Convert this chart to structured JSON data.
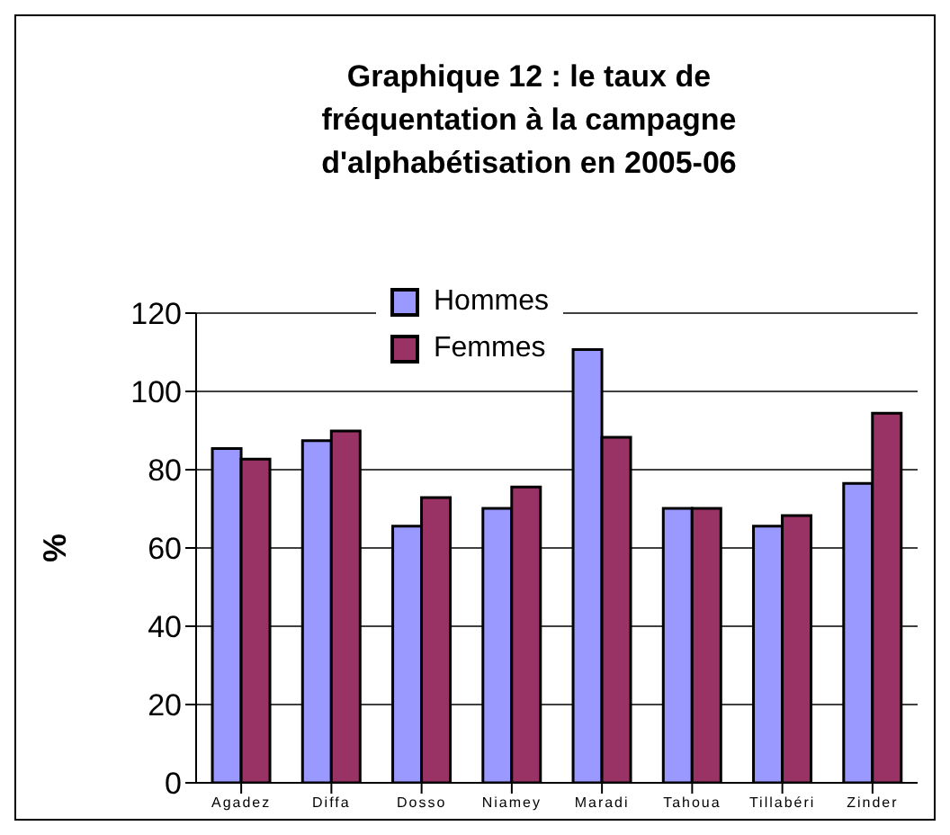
{
  "chart_data": {
    "type": "bar",
    "title": "Graphique 12 : le taux de fréquentation à la campagne d'alphabétisation en 2005-06",
    "ylabel": "%",
    "categories": [
      "Agadez",
      "Diffa",
      "Dosso",
      "Niamey",
      "Maradi",
      "Tahoua",
      "Tillabéri",
      "Zinder"
    ],
    "series": [
      {
        "name": "Hommes",
        "color": "#9999ff",
        "values": [
          85.4,
          87.4,
          65.6,
          70.1,
          110.7,
          70.1,
          65.6,
          76.5
        ]
      },
      {
        "name": "Femmes",
        "color": "#993366",
        "values": [
          82.7,
          89.9,
          72.9,
          75.6,
          88.3,
          70.1,
          68.3,
          94.4
        ]
      }
    ],
    "ylim": [
      0,
      120
    ],
    "yticks": [
      0,
      20,
      40,
      60,
      80,
      100,
      120
    ],
    "grid": "y",
    "legend": "top"
  }
}
